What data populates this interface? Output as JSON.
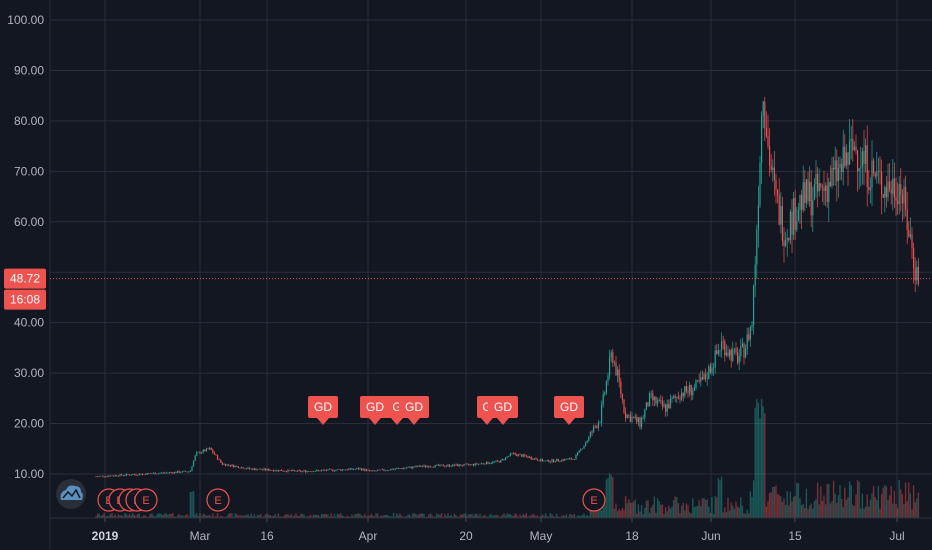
{
  "chart_data": {
    "type": "candlestick",
    "ylim": [
      0,
      100
    ],
    "y_ticks": [
      "10.00",
      "20.00",
      "30.00",
      "40.00",
      "50.00",
      "60.00",
      "70.00",
      "80.00",
      "90.00",
      "100.00"
    ],
    "x_ticks": [
      {
        "label": "2019",
        "bold": true,
        "x": 105
      },
      {
        "label": "Mar",
        "bold": false,
        "x": 200
      },
      {
        "label": "16",
        "bold": false,
        "x": 267
      },
      {
        "label": "Apr",
        "bold": false,
        "x": 368
      },
      {
        "label": "20",
        "bold": false,
        "x": 466
      },
      {
        "label": "May",
        "bold": false,
        "x": 541
      },
      {
        "label": "18",
        "bold": false,
        "x": 632
      },
      {
        "label": "Jun",
        "bold": false,
        "x": 711
      },
      {
        "label": "15",
        "bold": false,
        "x": 795
      },
      {
        "label": "Jul",
        "bold": false,
        "x": 897
      }
    ],
    "last_price": "48.72",
    "countdown": "16:08",
    "last_price_value": 48.72,
    "grid": true,
    "colors": {
      "up": "#26a69a",
      "down": "#ef5350",
      "grid": "#2a2e39",
      "bg": "#131722",
      "marker": "#ef5350"
    },
    "price_path": [
      [
        96,
        9.5
      ],
      [
        190,
        10.5
      ],
      [
        196,
        14.0
      ],
      [
        210,
        15.0
      ],
      [
        222,
        12.0
      ],
      [
        250,
        11.0
      ],
      [
        300,
        10.5
      ],
      [
        360,
        11.0
      ],
      [
        372,
        10.5
      ],
      [
        420,
        11.5
      ],
      [
        470,
        11.8
      ],
      [
        500,
        12.5
      ],
      [
        512,
        14.0
      ],
      [
        525,
        13.5
      ],
      [
        545,
        12.5
      ],
      [
        574,
        13.0
      ],
      [
        585,
        16.0
      ],
      [
        600,
        21.0
      ],
      [
        608,
        30.0
      ],
      [
        612,
        34.0
      ],
      [
        618,
        29.0
      ],
      [
        625,
        22.0
      ],
      [
        640,
        20.0
      ],
      [
        650,
        25.0
      ],
      [
        665,
        23.0
      ],
      [
        680,
        26.0
      ],
      [
        695,
        27.0
      ],
      [
        705,
        29.0
      ],
      [
        715,
        33.0
      ],
      [
        722,
        36.0
      ],
      [
        730,
        34.0
      ],
      [
        738,
        33.0
      ],
      [
        745,
        35.0
      ],
      [
        752,
        40.0
      ],
      [
        757,
        60.0
      ],
      [
        763,
        88.0
      ],
      [
        768,
        75.0
      ],
      [
        775,
        65.0
      ],
      [
        785,
        58.0
      ],
      [
        800,
        64.0
      ],
      [
        820,
        66.0
      ],
      [
        840,
        70.0
      ],
      [
        855,
        75.0
      ],
      [
        870,
        70.0
      ],
      [
        885,
        67.0
      ],
      [
        900,
        67.5
      ],
      [
        910,
        57.0
      ],
      [
        916,
        50.0
      ],
      [
        920,
        48.7
      ]
    ],
    "annotations": [
      {
        "label": "GD",
        "x": 323
      },
      {
        "label": "GD",
        "x": 375
      },
      {
        "label": "G",
        "x": 397
      },
      {
        "label": "GD",
        "x": 414
      },
      {
        "label": "G",
        "x": 487
      },
      {
        "label": "GD",
        "x": 503
      },
      {
        "label": "GD",
        "x": 569
      }
    ],
    "events": [
      {
        "label": "E",
        "x": 109
      },
      {
        "label": "E",
        "x": 120
      },
      {
        "label": "E",
        "x": 130
      },
      {
        "label": "E",
        "x": 137
      },
      {
        "label": "E",
        "x": 146
      },
      {
        "label": "E",
        "x": 218
      },
      {
        "label": "E",
        "x": 594
      }
    ]
  },
  "logo": {
    "icon": "cloud-icon"
  }
}
